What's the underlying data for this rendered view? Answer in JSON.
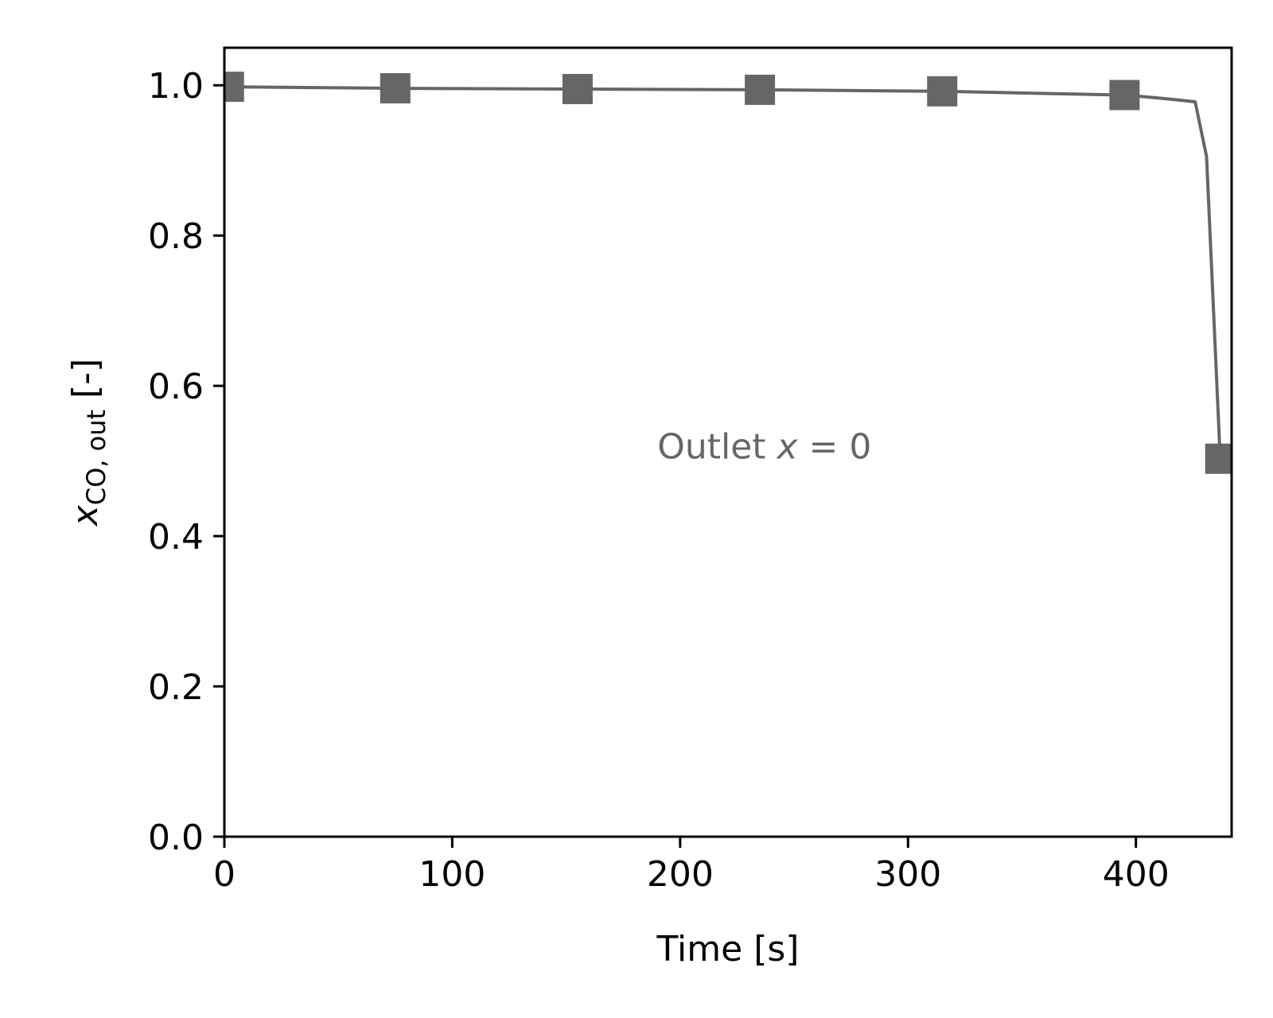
{
  "chart_data": {
    "type": "line",
    "xlabel": "Time [s]",
    "ylabel": {
      "main": "x",
      "subscript": "CO, out",
      "suffix": " [-]"
    },
    "xlim": [
      0,
      442
    ],
    "ylim": [
      0,
      1.05
    ],
    "xticks": [
      0,
      100,
      200,
      300,
      400
    ],
    "xtick_labels": [
      "0",
      "100",
      "200",
      "300",
      "400"
    ],
    "yticks": [
      0.0,
      0.2,
      0.4,
      0.6,
      0.8,
      1.0
    ],
    "ytick_labels": [
      "0.0",
      "0.2",
      "0.4",
      "0.6",
      "0.8",
      "1.0"
    ],
    "grid": false,
    "annotation": {
      "prefix": "Outlet ",
      "variable": "x",
      "equals": " = 0",
      "x": 190,
      "y": 0.52
    },
    "series": [
      {
        "color": "#666666",
        "marker": "square",
        "x": [
          0,
          75,
          155,
          235,
          315,
          395,
          410,
          420,
          426,
          431,
          437
        ],
        "y": [
          0.998,
          0.996,
          0.995,
          0.994,
          0.992,
          0.987,
          0.983,
          0.98,
          0.978,
          0.905,
          0.503
        ],
        "marker_x": [
          2,
          75,
          155,
          235,
          315,
          395,
          437
        ],
        "marker_y": [
          0.998,
          0.996,
          0.995,
          0.994,
          0.992,
          0.987,
          0.503
        ]
      }
    ]
  }
}
